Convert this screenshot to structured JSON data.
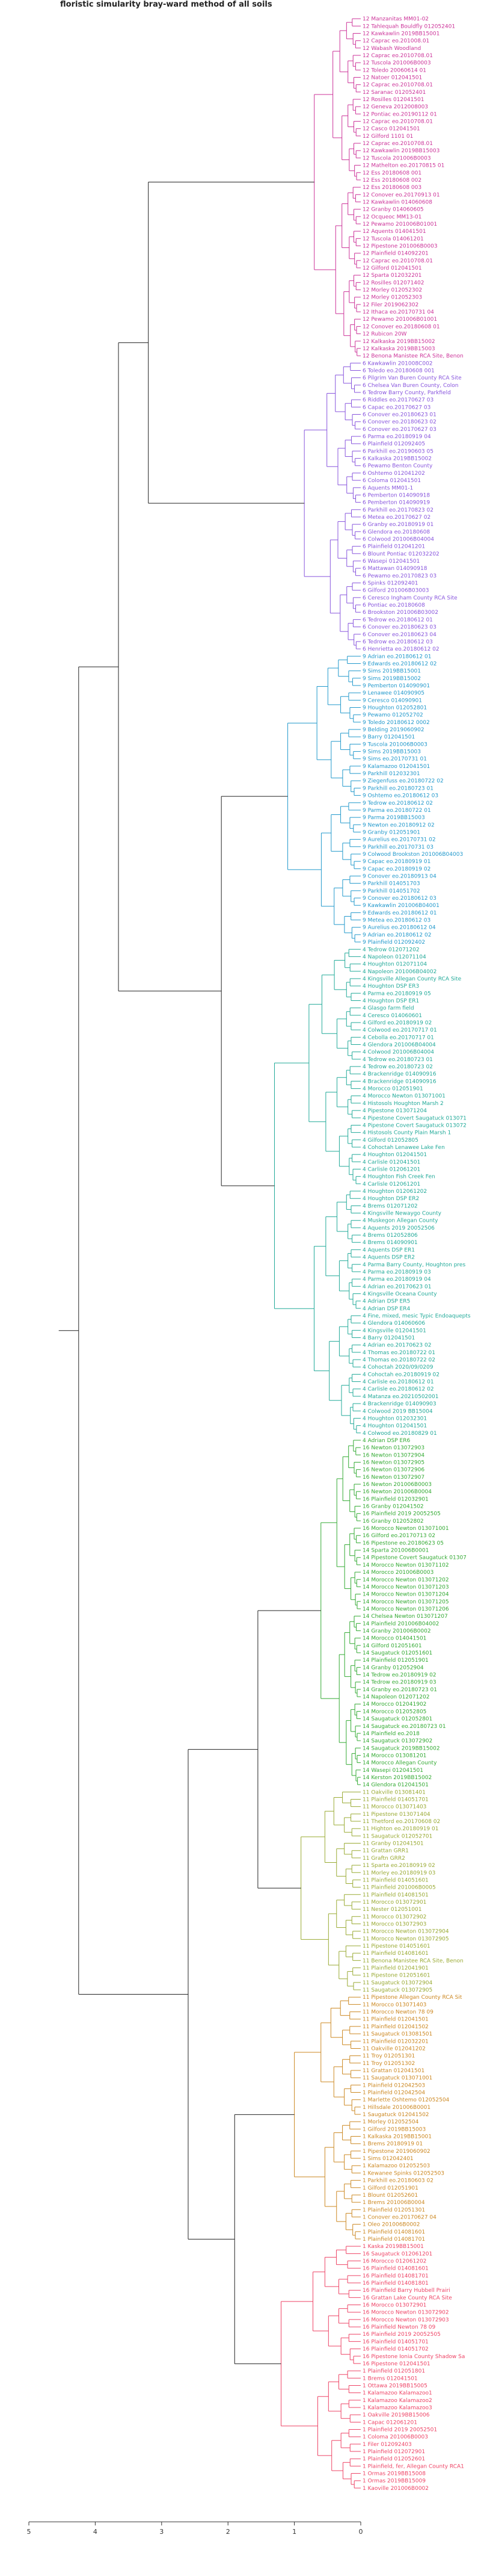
{
  "chart_data": {
    "type": "dendrogram",
    "title": "floristic simularity bray-ward  method of all soils",
    "xlim": [
      5,
      0
    ],
    "x_ticks": [
      5,
      4,
      3,
      2,
      1,
      0
    ],
    "clusters": [
      {
        "color": "#cc3399",
        "merge_height": 0.7,
        "labels": [
          "12 Manzanitas MM01-02",
          "12 Tahlequah Bouldfly 012052401",
          "12 Kawkawlin 2019BB15001",
          "12 Caprac eo.201008.01",
          "12 Wabash Woodland",
          "12 Caprac eo.2010708.01",
          "12 Tuscola 201006B0003",
          "12 Toledo 20060614 01",
          "12 Natoer 012041501",
          "12 Caprac eo.2010708.01",
          "12 Saranac 012052401",
          "12 Rosilles 012041501",
          "12 Geneva 2012008003",
          "12 Pontiac eo.20190112 01",
          "12 Caprac eo.2010708.01",
          "12 Casco 012041501",
          "12 Gilford 1101 01",
          "12 Caprac eo.2010708.01",
          "12 Kawkawlin 2019BB15003",
          "12 Tuscola 201006B0003",
          "12 Mathelton eo.20170815 01",
          "12 Ess 20180608 001",
          "12 Ess 20180608 002",
          "12 Ess 20180608 003",
          "12 Conover eo.20170913 01",
          "12 Kawkawlin 014060608",
          "12 Granby 014060605",
          "12 Ocqueoc MM13-01",
          "12 Pewamo 201006B01001",
          "12 Aquents 014041501",
          "12 Tuscola 014061201",
          "12 Pipestone 201006B0003",
          "12 Plainfield 014092201",
          "12 Caprac eo.2010708.01",
          "12 Gilford 012041501",
          "12 Sparta 012032201",
          "12 Rosilles 012071402",
          "12 Morley 012052302",
          "12 Morley 012052303",
          "12 Filer 2019062302",
          "12 Ithaca eo.20170731 04",
          "12 Pewamo 201006B01001",
          "12 Conover eo.20180608 01",
          "12 Rubicon 20W",
          "12 Kalkaska 2019BB15002",
          "12 Kalkaska 2019BB15003",
          "12 Benona Manistee RCA Site, Benon"
        ]
      },
      {
        "color": "#8855dd",
        "merge_height": 0.85,
        "labels": [
          "6 Kawkawlin 201008C002",
          "6 Toledo eo.20180608 001",
          "6 Pilgrim Van Buren County RCA Site",
          "6 Chelsea Van Buren County, Colon",
          "6 Tedrow Barry County, Parkfield",
          "6 Riddles eo.20170627 03",
          "6 Capac eo.20170627 03",
          "6 Conover eo.20180623 01",
          "6 Conover eo.20180623 02",
          "6 Conover eo.20170627 03",
          "6 Parma eo.20180919 04",
          "6 Plainfield 012092405",
          "6 Parkhill eo.20190603 05",
          "6 Kalkaska 2019BB15002",
          "6 Pewamo Benton County",
          "6 Oshtemo 012041202",
          "6 Coloma 012041501",
          "6 Aquents MM01-1",
          "6 Pemberton 014090918",
          "6 Pemberton 014090919",
          "6 Parkhill eo.20170823 02",
          "6 Metea eo.20170627 02",
          "6 Granby eo.20180919 01",
          "6 Glendora eo.20180608",
          "6 Colwood 201006B04004",
          "6 Plainfield 012041201",
          "6 Blount Pontiac 012032202",
          "6 Wasepi 012041501",
          "6 Mattawan 014090918",
          "6 Pewamo eo.20170823 03",
          "6 Spinks 012092401",
          "6 Gilford 201006B03003",
          "6 Ceresco Ingham County RCA Site",
          "6 Pontiac eo.20180608",
          "6 Brookston 201006B03002",
          "6 Tedrow eo.20180612 01",
          "6 Conover eo.20180623 03",
          "6 Conover eo.20180623 04",
          "6 Tedrow eo.20180612 03",
          "6 Henrietta eo.20180612 02"
        ]
      },
      {
        "color": "#2299cc",
        "merge_height": 1.1,
        "labels": [
          "9 Adrian eo.20180612 01",
          "9 Edwards eo.20180612 02",
          "9 Sims 2019BB15001",
          "9 Sims 2019BB15002",
          "9 Pemberton 014090901",
          "9 Lenawee 014090905",
          "9 Ceresco 014090901",
          "9 Houghton 012052801",
          "9 Pewamo 012052702",
          "9 Toledo 20180612 0002",
          "9 Belding 2019060902",
          "9 Barry 012041501",
          "9 Tuscola 201006B0003",
          "9 Sims 2019BB15003",
          "9 Sims eo.20170731 01",
          "9 Kalamazoo 012041501",
          "9 Parkhill 012032301",
          "9 Ziegenfuss eo.20180722 02",
          "9 Parkhill eo.20180723 01",
          "9 Oshtemo eo.20180612 03",
          "9 Tedrow eo.20180612 02",
          "9 Parma eo.20180722 01",
          "9 Parma 2019BB15003",
          "9 Newton eo.20180912 02",
          "9 Granby 012051901",
          "9 Aurelius eo.20170731 02",
          "9 Parkhill eo.20170731 03",
          "9 Colwood Brookston 201006B04003",
          "9 Capac eo.20180919 01",
          "9 Capac eo.20180919 02",
          "9 Conover eo.20180913 04",
          "9 Parkhill 014051703",
          "9 Parkhill 014051702",
          "9 Conover eo.20180612 03",
          "9 Kawkawlin 201006B04001",
          "9 Edwards eo.20180612 01",
          "9 Metea eo.20180612 03",
          "9 Aurelius eo.20180612 04",
          "9 Adrian eo.20180612 02",
          "9 Plainfield 012092402"
        ]
      },
      {
        "color": "#22aa99",
        "merge_height": 1.3,
        "labels": [
          "4 Tedrow 012071202",
          "4 Napoleon 012071104",
          "4 Houghton 012071104",
          "4 Napoleon 201006B04002",
          "4 Kingsville Allegan County RCA Site",
          "4 Houghton DSP ER3",
          "4 Parma eo.20180919 05",
          "4 Houghton DSP ER1",
          "4 Glasgo farm field",
          "4 Ceresco 014060601",
          "4 Gilford eo.20180919 02",
          "4 Colwood eo.20170717 01",
          "4 Cebolla eo.20170717 01",
          "4 Glendora 201006B04004",
          "4 Colwood 201006B04004",
          "4 Tedrow eo.20180723 01",
          "4 Tedrow eo.20180723 02",
          "4 Brackenridge 014090916",
          "4 Brackenridge 014090916",
          "4 Morocco 012051901",
          "4 Morocco Newton 013071001",
          "4 Histosols Houghton Marsh 2",
          "4 Pipestone 013071204",
          "4 Pipestone Covert Saugatuck 013071",
          "4 Pipestone Covert Saugatuck 013072",
          "4 Histosols County Plain Marsh 1",
          "4 Gilford 012052805",
          "4 Cohoctah Lenawee Lake Fen",
          "4 Houghton 012041501",
          "4 Carlisle 012041501",
          "4 Carlisle 012061201",
          "4 Houghton Fish Creek Fen",
          "4 Carlisle 012061201",
          "4 Houghton 012061202",
          "4 Houghton DSP ER2",
          "4 Brems 012071202",
          "4 Kingsville Newaygo County",
          "4 Muskegon Allegan County",
          "4 Aquents 2019 20052506",
          "4 Brems 012052806",
          "4 Brems 014090901",
          "4 Aquents DSP ER1",
          "4 Aquents DSP ER2",
          "4 Parma Barry County, Houghton pres",
          "4 Parma eo.20180919 03",
          "4 Parma eo.20180919 04",
          "4 Adrian eo.20170623 01",
          "4 Kingsville Oceana County",
          "4 Adrian DSP ER5",
          "4 Adrian DSP ER4",
          "4 Fine, mixed, mesic Typic Endoaquepts",
          "4 Glendora 014060606",
          "4 Kingsville 012041501",
          "4 Barry 012041501",
          "4 Adrian eo.20170623 02",
          "4 Thomas eo.20180722 01",
          "4 Thomas eo.20180722 02",
          "4 Cohoctah 2020/09/0209",
          "4 Cohoctah eo.20180919 02",
          "4 Carlisle eo.20180612 01",
          "4 Carlisle eo.20180612 02",
          "4 Matanza eo.20210502001",
          "4 Brackenridge 014090903",
          "4 Colwood 2019 BB15004",
          "4 Houghton 012032301",
          "4 Houghton 012041501",
          "4 Colwood eo.20180829 01"
        ]
      },
      {
        "color": "#33aa33",
        "merge_height": 0.6,
        "labels": [
          "4 Adrian DSP ER6",
          "16 Newton 013072903",
          "16 Newton 013072904",
          "16 Newton 013072905",
          "16 Newton 013072906",
          "16 Newton 013072907",
          "16 Newton 201006B0003",
          "16 Newton 201006B0004",
          "16 Plainfield 012032901",
          "16 Granby 012041502",
          "16 Plainfield 2019 20052505",
          "16 Granby 012052802",
          "16 Morocco Newton 013071001",
          "16 Gilford eo.20170713 02",
          "16 Pipestone eo.20180623 05",
          "14 Sparta 201006B0001",
          "14 Pipestone Covert Saugatuck 01307",
          "14 Morocco Newton 013071102",
          "14 Morocco 201006B0003",
          "14 Morocco Newton 013071202",
          "14 Morocco Newton 013071203",
          "14 Morocco Newton 013071204",
          "14 Morocco Newton 013071205",
          "14 Morocco Newton 013071206",
          "14 Chelsea Newton 013071207",
          "14 Plainfield 201006B04002",
          "14 Granby 201006B0002",
          "14 Morocco 014041501",
          "14 Gilford 012051601",
          "14 Saugatuck 012051601",
          "14 Plainfield 012051901",
          "14 Granby 012052904",
          "14 Tedrow eo.20180919 02",
          "14 Tedrow eo.20180919 03",
          "14 Granby eo.20180723 01",
          "14 Napoleon 012071202",
          "14 Morocco 012041902",
          "14 Morocco 012052805",
          "14 Saugatuck 012052801",
          "14 Saugatuck eo.20180723 01",
          "14 Plainfield eo.2018",
          "14 Saugatuck 013072902",
          "14 Saugatuck 2019BB15002",
          "14 Morocco 013081201",
          "14 Morocco Allegan County",
          "14 Wasepi 012041501",
          "14 Kerston 2019BB15002",
          "14 Glendora 012041501"
        ]
      },
      {
        "color": "#99aa33",
        "merge_height": 0.9,
        "labels": [
          "11 Oakville 013081401",
          "11 Plainfield 014051701",
          "11 Morocco 013071403",
          "11 Pipestone 013071404",
          "11 Thetford eo.20170608 02",
          "11 Highton eo.20180919 01",
          "11 Saugatuck 012052701",
          "11 Granby 012041501",
          "11 Grattan GRR1",
          "11 Graftn GRR2",
          "11 Sparta eo.20180919 02",
          "11 Morley eo.20180919 03",
          "11 Plainfield 014051601",
          "11 Plainfield 201006B0005",
          "11 Plainfield 014081501",
          "11 Morocco 013072901",
          "11 Nester 012051001",
          "11 Morocco 013072902",
          "11 Morocco 013072903",
          "11 Morocco Newton 013072904",
          "11 Morocco Newton 013072905",
          "11 Pipestone 014051601",
          "11 Plainfield 014081601",
          "11 Benona Manistee RCA Site, Benon",
          "11 Plainfield 012041901",
          "11 Pipestone 012051601",
          "11 Saugatuck 013072904",
          "11 Saugatuck 013072905"
        ]
      },
      {
        "color": "#cc8822",
        "merge_height": 1.0,
        "labels": [
          "11 Pipestone Allegan County RCA Sit",
          "11 Morocco 013071403",
          "11 Morocco Newton 78 09",
          "11 Plainfield 012041501",
          "11 Plainfield 012041502",
          "11 Saugatuck 013081501",
          "11 Plainfield 012032201",
          "11 Oakville 012041202",
          "11 Troy 012051301",
          "11 Troy 012051302",
          "11 Grattan 012041501",
          "11 Saugatuck 013071001",
          "1 Plainfield 012042503",
          "1 Plainfield 012042504",
          "1 Marlette Oshtemo 012052504",
          "1 Hillsdale 201006B0001",
          "1 Saugatuck 012041502",
          "1 Morley 012052504",
          "1 Gilford 2019BB15003",
          "1 Kalkaska 2019BB15001",
          "1 Brems 20180919 01",
          "1 Pipestone 2019060902",
          "1 Sims 012042401",
          "1 Kalamazoo 012052503",
          "1 Kewanee Spinks 012052503",
          "1 Parkhill eo.20180603 02",
          "1 Gilford 012051901",
          "1 Blount 012052601",
          "1 Brems 201006B0004",
          "1 Plainfield 012051301",
          "1 Conover eo.20170627 04",
          "1 Oleo 201006B0002",
          "1 Plainfield 014081601",
          "1 Plainfield 014081701"
        ]
      },
      {
        "color": "#ee4466",
        "merge_height": 1.2,
        "labels": [
          "1 Kaska 2019BB15001",
          "16 Saugatuck 012061201",
          "16 Morocco 012061202",
          "16 Plainfield 014081601",
          "16 Plainfield 014081701",
          "16 Plainfield 014081801",
          "16 Plainfield Barry Hubbell Prairi",
          "16 Grattan Lake County RCA Site",
          "16 Morocco 013072901",
          "16 Morocco Newton 013072902",
          "16 Morocco Newton 013072903",
          "16 Plainfield Newton 78 09",
          "16 Plainfield 2019 20052505",
          "16 Plainfield 014051701",
          "16 Plainfield 014051702",
          "16 Pipestone Ionia County Shadow Sa",
          "16 Pipestone 012041501",
          "1 Plainfield 012051801",
          "1 Brems 012041501",
          "1 Ottawa 2019BB15005",
          "1 Kalamazoo Kalamazoo1",
          "1 Kalamazoo Kalamazoo2",
          "1 Kalamazoo Kalamazoo3",
          "1 Oakville 2019BB15006",
          "1 Capac 012061201",
          "1 Plainfield 2019 20052501",
          "1 Coloma 201006B0003",
          "1 Filer 012092403",
          "1 Plainfield 012072901",
          "1 Plainfield 012052601",
          "1 Plainfield, fer, Allegan County RCA1",
          "1 Ormas 2019BB15008",
          "1 Ormas 2019BB15009",
          "1 Kaoville 201006B0002"
        ]
      }
    ]
  }
}
